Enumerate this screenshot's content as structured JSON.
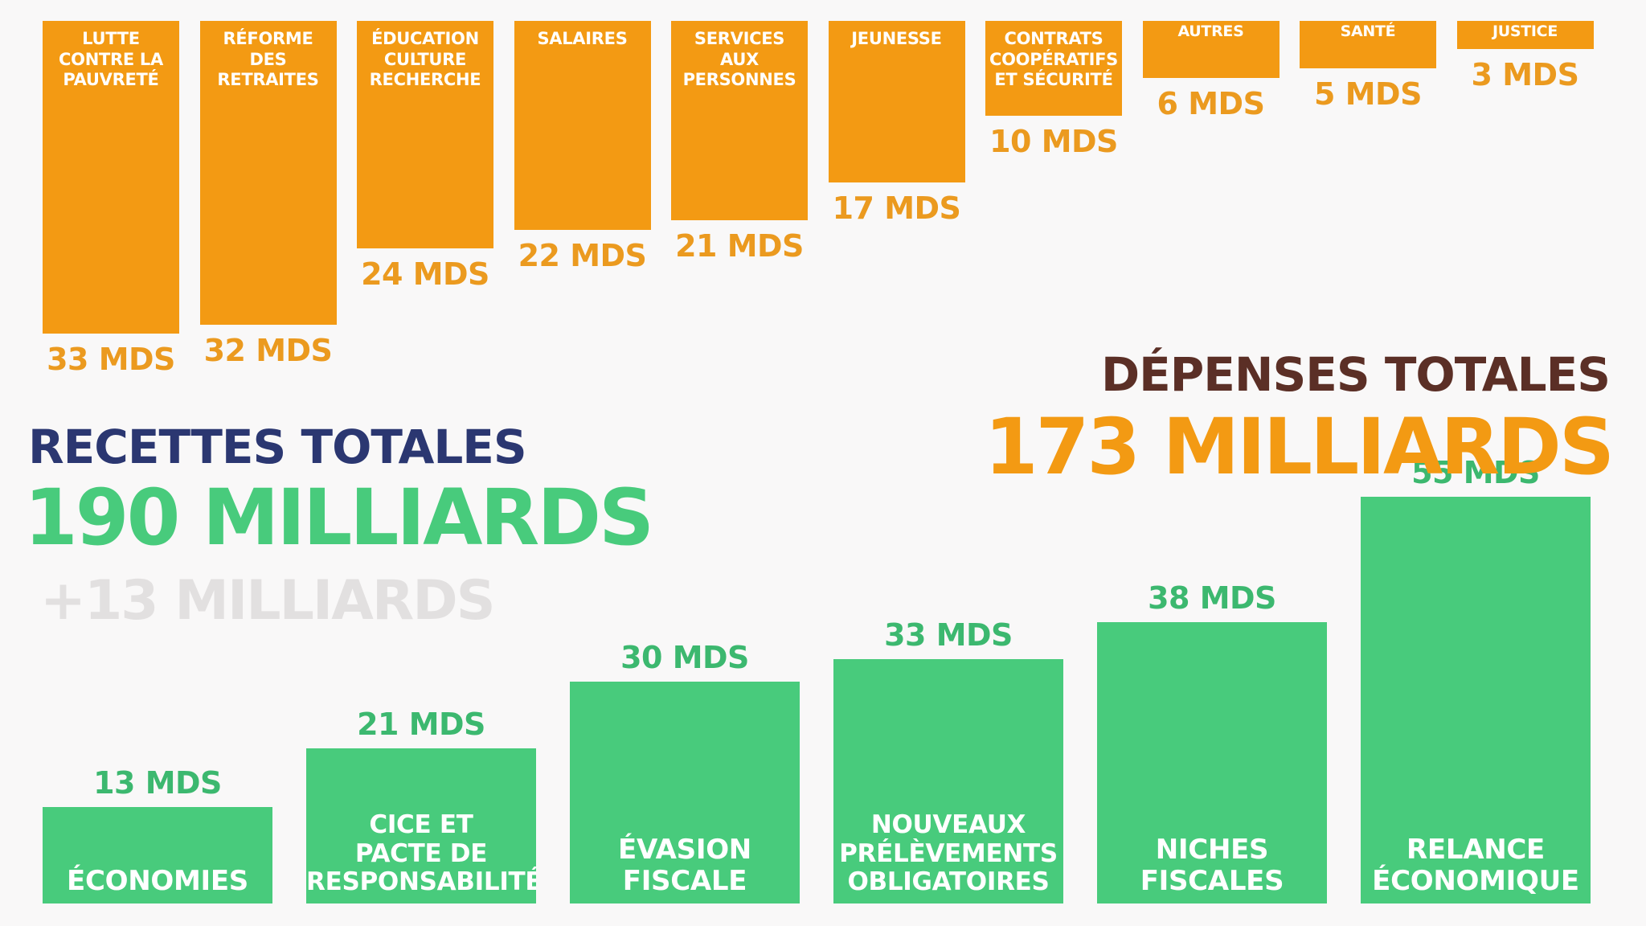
{
  "colors": {
    "expense_bar": "#f39a13",
    "expense_value": "#eb9a1f",
    "revenue_bar": "#48cb7c",
    "revenue_value": "#3cb86f",
    "recettes_heading": "#2b3771",
    "depenses_heading": "#5b2f26",
    "gain_text": "#e2e0e0",
    "background": "#f9f8f8"
  },
  "headings": {
    "recettes_title": "RECETTES TOTALES",
    "recettes_amount": "190 MILLIARDS",
    "recettes_gain": "+13 MILLIARDS",
    "depenses_title": "DÉPENSES TOTALES",
    "depenses_amount": "173 MILLIARDS"
  },
  "chart_data": [
    {
      "type": "bar",
      "categories": [
        "LUTTE CONTRE LA PAUVRETÉ",
        "RÉFORME DES RETRAITES",
        "ÉDUCATION CULTURE RECHERCHE",
        "SALAIRES",
        "SERVICES AUX PERSONNES",
        "JEUNESSE",
        "CONTRATS COOPÉRATIFS ET SÉCURITÉ",
        "AUTRES",
        "SANTÉ",
        "JUSTICE"
      ],
      "values": [
        33,
        32,
        24,
        22,
        21,
        17,
        10,
        6,
        5,
        3
      ],
      "value_labels": [
        "33 MDS",
        "32 MDS",
        "24 MDS",
        "22 MDS",
        "21 MDS",
        "17 MDS",
        "10 MDS",
        "6 MDS",
        "5 MDS",
        "3 MDS"
      ],
      "title": "DÉPENSES TOTALES",
      "orientation": "hanging",
      "grid": false
    },
    {
      "type": "bar",
      "categories": [
        "ÉCONOMIES",
        "CICE ET PACTE DE RESPONSABILITÉ",
        "ÉVASION FISCALE",
        "NOUVEAUX PRÉLÈVEMENTS OBLIGATOIRES",
        "NICHES FISCALES",
        "RELANCE ÉCONOMIQUE"
      ],
      "values": [
        13,
        21,
        30,
        33,
        38,
        55
      ],
      "value_labels": [
        "13 MDS",
        "21 MDS",
        "30 MDS",
        "33 MDS",
        "38 MDS",
        "55 MDS"
      ],
      "title": "RECETTES TOTALES",
      "orientation": "upright",
      "grid": false
    }
  ]
}
